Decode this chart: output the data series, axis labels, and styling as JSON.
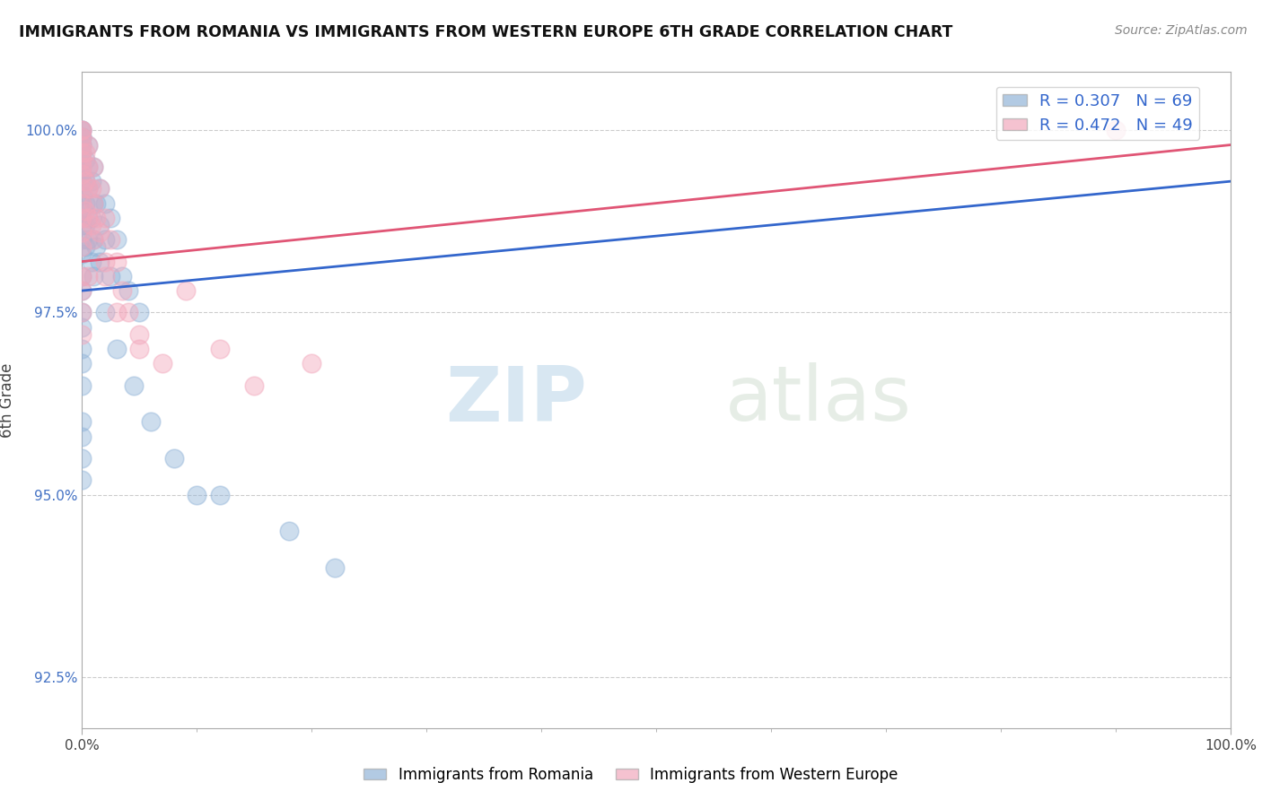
{
  "title": "IMMIGRANTS FROM ROMANIA VS IMMIGRANTS FROM WESTERN EUROPE 6TH GRADE CORRELATION CHART",
  "source": "Source: ZipAtlas.com",
  "ylabel": "6th Grade",
  "xlim": [
    0,
    100
  ],
  "ylim": [
    91.8,
    100.8
  ],
  "yticks": [
    92.5,
    95.0,
    97.5,
    100.0
  ],
  "xtick_labels": [
    "0.0%",
    "100.0%"
  ],
  "ytick_labels": [
    "92.5%",
    "95.0%",
    "97.5%",
    "100.0%"
  ],
  "blue_color": "#92B4D8",
  "pink_color": "#F2A8BC",
  "blue_line_color": "#3366CC",
  "pink_line_color": "#E05575",
  "R_blue": 0.307,
  "N_blue": 69,
  "R_pink": 0.472,
  "N_pink": 49,
  "legend_label_blue": "Immigrants from Romania",
  "legend_label_pink": "Immigrants from Western Europe",
  "watermark_zip": "ZIP",
  "watermark_atlas": "atlas",
  "blue_scatter": [
    [
      0.0,
      100.0
    ],
    [
      0.0,
      100.0
    ],
    [
      0.0,
      99.9
    ],
    [
      0.0,
      99.9
    ],
    [
      0.0,
      99.8
    ],
    [
      0.0,
      99.8
    ],
    [
      0.0,
      99.7
    ],
    [
      0.0,
      99.6
    ],
    [
      0.0,
      99.5
    ],
    [
      0.0,
      99.4
    ],
    [
      0.0,
      99.3
    ],
    [
      0.0,
      99.2
    ],
    [
      0.0,
      99.1
    ],
    [
      0.0,
      99.0
    ],
    [
      0.0,
      98.9
    ],
    [
      0.0,
      98.8
    ],
    [
      0.0,
      98.7
    ],
    [
      0.0,
      98.5
    ],
    [
      0.0,
      98.3
    ],
    [
      0.0,
      98.0
    ],
    [
      0.0,
      97.8
    ],
    [
      0.0,
      97.5
    ],
    [
      0.0,
      97.3
    ],
    [
      0.0,
      97.0
    ],
    [
      0.0,
      96.8
    ],
    [
      0.0,
      96.5
    ],
    [
      0.0,
      96.0
    ],
    [
      0.0,
      95.8
    ],
    [
      0.0,
      95.5
    ],
    [
      0.0,
      95.2
    ],
    [
      0.5,
      99.8
    ],
    [
      0.5,
      99.5
    ],
    [
      0.5,
      99.2
    ],
    [
      0.5,
      98.8
    ],
    [
      0.5,
      98.5
    ],
    [
      1.0,
      99.5
    ],
    [
      1.0,
      99.0
    ],
    [
      1.0,
      98.5
    ],
    [
      1.0,
      98.0
    ],
    [
      1.5,
      99.2
    ],
    [
      1.5,
      98.7
    ],
    [
      1.5,
      98.2
    ],
    [
      2.0,
      99.0
    ],
    [
      2.0,
      98.5
    ],
    [
      2.5,
      98.8
    ],
    [
      2.5,
      98.0
    ],
    [
      3.0,
      98.5
    ],
    [
      3.5,
      98.0
    ],
    [
      4.0,
      97.8
    ],
    [
      5.0,
      97.5
    ],
    [
      0.3,
      99.6
    ],
    [
      0.3,
      99.3
    ],
    [
      0.3,
      99.0
    ],
    [
      0.3,
      98.7
    ],
    [
      0.3,
      98.4
    ],
    [
      0.8,
      99.3
    ],
    [
      0.8,
      98.8
    ],
    [
      0.8,
      98.2
    ],
    [
      1.2,
      99.0
    ],
    [
      1.2,
      98.4
    ],
    [
      2.0,
      97.5
    ],
    [
      3.0,
      97.0
    ],
    [
      4.5,
      96.5
    ],
    [
      6.0,
      96.0
    ],
    [
      8.0,
      95.5
    ],
    [
      10.0,
      95.0
    ],
    [
      12.0,
      95.0
    ],
    [
      18.0,
      94.5
    ],
    [
      22.0,
      94.0
    ]
  ],
  "pink_scatter": [
    [
      0.0,
      100.0
    ],
    [
      0.0,
      100.0
    ],
    [
      0.0,
      99.9
    ],
    [
      0.0,
      99.8
    ],
    [
      0.0,
      99.7
    ],
    [
      0.0,
      99.6
    ],
    [
      0.0,
      99.5
    ],
    [
      0.0,
      99.4
    ],
    [
      0.0,
      99.2
    ],
    [
      0.0,
      99.0
    ],
    [
      0.0,
      98.8
    ],
    [
      0.0,
      98.6
    ],
    [
      0.0,
      98.4
    ],
    [
      0.0,
      98.0
    ],
    [
      0.5,
      99.8
    ],
    [
      0.5,
      99.5
    ],
    [
      0.5,
      99.2
    ],
    [
      0.5,
      98.8
    ],
    [
      1.0,
      99.5
    ],
    [
      1.0,
      99.0
    ],
    [
      1.0,
      98.5
    ],
    [
      1.5,
      99.2
    ],
    [
      1.5,
      98.6
    ],
    [
      2.0,
      98.8
    ],
    [
      2.0,
      98.2
    ],
    [
      2.5,
      98.5
    ],
    [
      3.0,
      98.2
    ],
    [
      3.5,
      97.8
    ],
    [
      4.0,
      97.5
    ],
    [
      5.0,
      97.2
    ],
    [
      0.3,
      99.7
    ],
    [
      0.3,
      99.3
    ],
    [
      0.3,
      98.9
    ],
    [
      0.8,
      99.2
    ],
    [
      0.8,
      98.7
    ],
    [
      1.2,
      98.8
    ],
    [
      2.0,
      98.0
    ],
    [
      3.0,
      97.5
    ],
    [
      5.0,
      97.0
    ],
    [
      7.0,
      96.8
    ],
    [
      9.0,
      97.8
    ],
    [
      12.0,
      97.0
    ],
    [
      15.0,
      96.5
    ],
    [
      20.0,
      96.8
    ],
    [
      0.0,
      97.8
    ],
    [
      0.0,
      97.5
    ],
    [
      0.0,
      97.2
    ],
    [
      90.0,
      100.0
    ],
    [
      0.5,
      98.0
    ]
  ],
  "blue_trendline": [
    [
      0,
      97.8
    ],
    [
      100,
      99.3
    ]
  ],
  "pink_trendline": [
    [
      0,
      98.2
    ],
    [
      100,
      99.8
    ]
  ]
}
